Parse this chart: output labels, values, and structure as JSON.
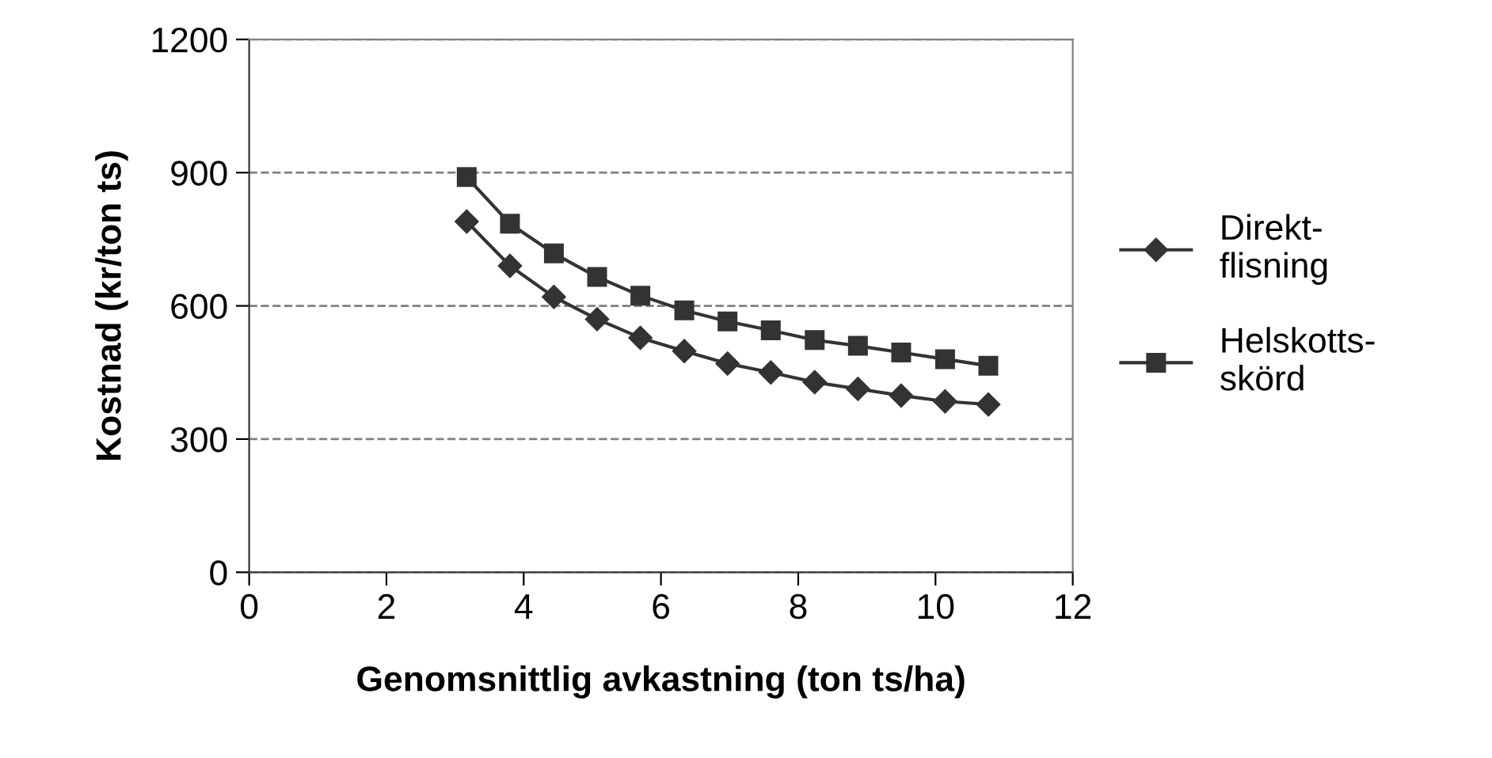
{
  "chart_data": {
    "type": "line",
    "xlabel": "Genomsnittlig avkastning (ton ts/ha)",
    "ylabel": "Kostnad (kr/ton ts)",
    "x": [
      3.17,
      3.8,
      4.44,
      5.07,
      5.7,
      6.34,
      6.97,
      7.6,
      8.24,
      8.87,
      9.5,
      10.14,
      10.77
    ],
    "series": [
      {
        "name": "Direkt-\nflisning",
        "color": "#333333",
        "marker": "diamond",
        "values": [
          790,
          690,
          620,
          570,
          528,
          498,
          470,
          450,
          428,
          413,
          398,
          385,
          378
        ]
      },
      {
        "name": "Helskotts-\nskörd",
        "color": "#333333",
        "marker": "square",
        "values": [
          890,
          785,
          718,
          665,
          623,
          590,
          565,
          545,
          523,
          510,
          495,
          480,
          465
        ]
      }
    ],
    "xlim": [
      0,
      12
    ],
    "xticks": [
      0,
      2,
      4,
      6,
      8,
      10,
      12
    ],
    "ylim": [
      0,
      1200
    ],
    "yticks": [
      0,
      300,
      600,
      900,
      1200
    ],
    "grid": "y",
    "legend": "right",
    "line_style": "solid"
  }
}
